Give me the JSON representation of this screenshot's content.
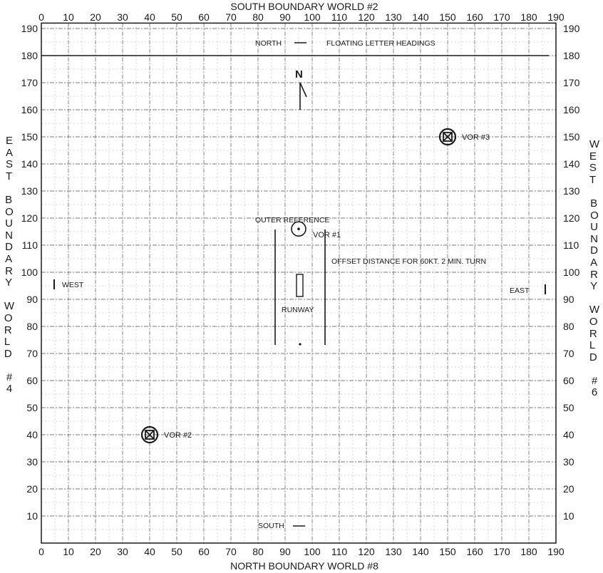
{
  "map": {
    "top_title": "SOUTH BOUNDARY WORLD #2",
    "bottom_title": "NORTH BOUNDARY WORLD #8",
    "left_side": {
      "lines": [
        "EAST",
        "BOUNDARY",
        "WORLD",
        "#4"
      ]
    },
    "right_side": {
      "lines": [
        "WEST",
        "BOUNDARY",
        "WORLD",
        "#6"
      ]
    },
    "x_ticks": [
      0,
      10,
      20,
      30,
      40,
      50,
      60,
      70,
      80,
      90,
      100,
      110,
      120,
      130,
      140,
      150,
      160,
      170,
      180,
      190
    ],
    "y_ticks_left": [
      190,
      180,
      170,
      160,
      150,
      140,
      130,
      120,
      110,
      100,
      90,
      80,
      70,
      60,
      50,
      40,
      30,
      20,
      10
    ],
    "y_ticks_right": [
      190,
      180,
      170,
      160,
      150,
      140,
      130,
      120,
      110,
      100,
      90,
      80,
      70,
      60,
      50,
      40,
      30,
      20,
      10
    ],
    "north_arrow_label": "N",
    "heading_legend": {
      "north_label": "NORTH",
      "floating_label": "FLOATING LETTER HEADINGS"
    },
    "south_label": "SOUTH",
    "west_label": "WEST",
    "east_label": "EAST",
    "outer_reference_label": "OUTER REFERENCE",
    "offset_label": "OFFSET DISTANCE FOR 60KT. 2 MIN. TURN",
    "runway_label": "RUNWAY",
    "vors": [
      {
        "label": "VOR #1",
        "x": 95,
        "y": 116
      },
      {
        "label": "VOR #2",
        "x": 40,
        "y": 40
      },
      {
        "label": "VOR #3",
        "x": 150,
        "y": 150
      }
    ],
    "colors": {
      "ink": "#1a1a1a",
      "grid": "#8c8c8c",
      "paper": "#ffffff"
    }
  }
}
